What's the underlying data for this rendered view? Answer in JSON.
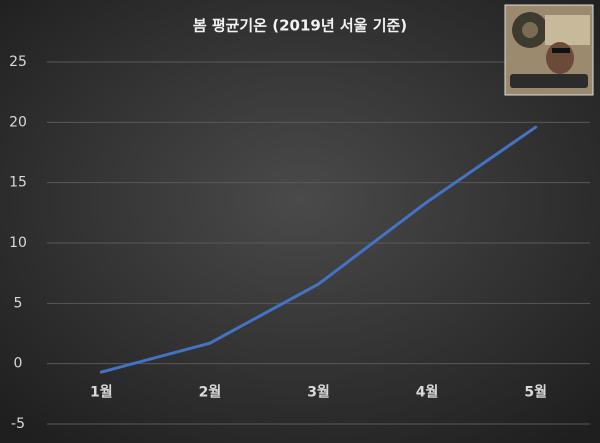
{
  "chart_data": {
    "type": "line",
    "title": "봄 평균기온 (2019년 서울 기준)",
    "categories": [
      "1월",
      "2월",
      "3월",
      "4월",
      "5월"
    ],
    "values": [
      -0.7,
      1.7,
      6.6,
      13.4,
      19.6
    ],
    "color": "#4472c4",
    "ylim": [
      -5,
      25
    ],
    "yticks": [
      -5,
      0,
      5,
      10,
      15,
      20,
      25
    ],
    "grid": true
  }
}
